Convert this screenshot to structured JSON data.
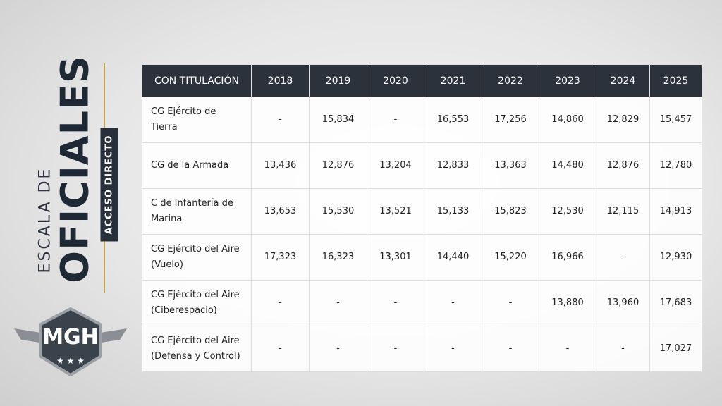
{
  "side": {
    "escala": "ESCALA DE",
    "oficiales": "OFICIALES",
    "badge": "ACCESO DIRECTO"
  },
  "logo": "MGH",
  "table": {
    "header": [
      "CON TITULACIÓN",
      "2018",
      "2019",
      "2020",
      "2021",
      "2022",
      "2023",
      "2024",
      "2025"
    ],
    "rows": [
      [
        "CG Ejército de Tierra",
        "-",
        "15,834",
        "-",
        "16,553",
        "17,256",
        "14,860",
        "12,829",
        "15,457"
      ],
      [
        "CG de la Armada",
        "13,436",
        "12,876",
        "13,204",
        "12,833",
        "13,363",
        "14,480",
        "12,876",
        "12,780"
      ],
      [
        "C de Infantería de Marina",
        "13,653",
        "15,530",
        "13,521",
        "15,133",
        "15,823",
        "12,530",
        "12,115",
        "14,913"
      ],
      [
        "CG Ejército del Aire (Vuelo)",
        "17,323",
        "16,323",
        "13,301",
        "14,440",
        "15,220",
        "16,966",
        "-",
        "12,930"
      ],
      [
        "CG Ejército del Aire (Ciberespacio)",
        "-",
        "-",
        "-",
        "-",
        "-",
        "13,880",
        "13,960",
        "17,683"
      ],
      [
        "CG Ejército del Aire (Defensa y Control)",
        "-",
        "-",
        "-",
        "-",
        "-",
        "-",
        "-",
        "17,027"
      ]
    ]
  }
}
